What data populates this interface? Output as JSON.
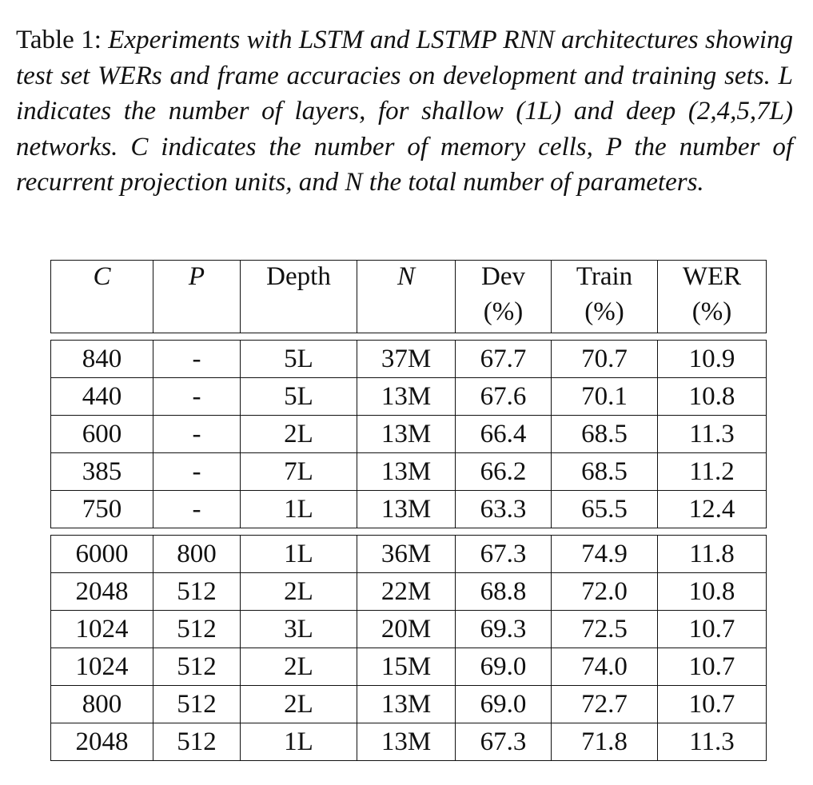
{
  "caption": {
    "label": "Table 1:",
    "text": "Experiments with LSTM and LSTMP RNN architectures showing test set WERs and frame accuracies on development and training sets. L indicates the number of layers, for shallow (1L) and deep (2,4,5,7L) networks. C indicates the number of memory cells, P the number of recurrent projection units, and N the total number of parameters."
  },
  "table": {
    "headers": [
      {
        "label": "C",
        "unit": ""
      },
      {
        "label": "P",
        "unit": ""
      },
      {
        "label": "Depth",
        "unit": ""
      },
      {
        "label": "N",
        "unit": ""
      },
      {
        "label": "Dev",
        "unit": "(%)"
      },
      {
        "label": "Train",
        "unit": "(%)"
      },
      {
        "label": "WER",
        "unit": "(%)"
      }
    ],
    "lstm_rows": [
      [
        "840",
        "-",
        "5L",
        "37M",
        "67.7",
        "70.7",
        "10.9"
      ],
      [
        "440",
        "-",
        "5L",
        "13M",
        "67.6",
        "70.1",
        "10.8"
      ],
      [
        "600",
        "-",
        "2L",
        "13M",
        "66.4",
        "68.5",
        "11.3"
      ],
      [
        "385",
        "-",
        "7L",
        "13M",
        "66.2",
        "68.5",
        "11.2"
      ],
      [
        "750",
        "-",
        "1L",
        "13M",
        "63.3",
        "65.5",
        "12.4"
      ]
    ],
    "lstmp_rows": [
      [
        "6000",
        "800",
        "1L",
        "36M",
        "67.3",
        "74.9",
        "11.8"
      ],
      [
        "2048",
        "512",
        "2L",
        "22M",
        "68.8",
        "72.0",
        "10.8"
      ],
      [
        "1024",
        "512",
        "3L",
        "20M",
        "69.3",
        "72.5",
        "10.7"
      ],
      [
        "1024",
        "512",
        "2L",
        "15M",
        "69.0",
        "74.0",
        "10.7"
      ],
      [
        "800",
        "512",
        "2L",
        "13M",
        "69.0",
        "72.7",
        "10.7"
      ],
      [
        "2048",
        "512",
        "1L",
        "13M",
        "67.3",
        "71.8",
        "11.3"
      ]
    ]
  }
}
